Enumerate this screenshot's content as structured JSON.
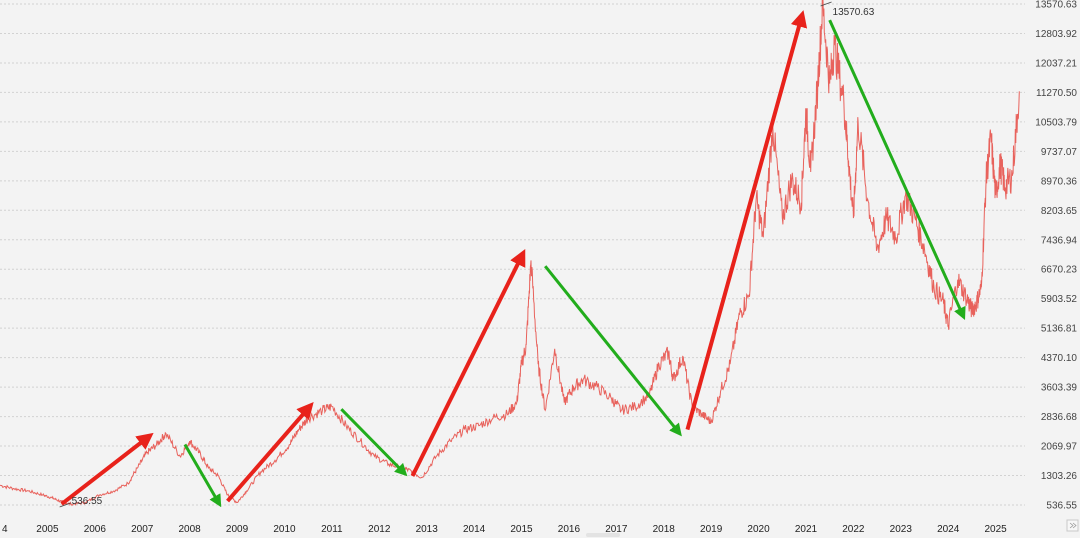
{
  "chart_data": {
    "type": "line",
    "title": "",
    "xlabel": "",
    "ylabel": "",
    "grid": true,
    "y_axis_position": "right",
    "ylim": [
      400,
      13650
    ],
    "xlim": [
      2004.0,
      2025.6
    ],
    "x_ticks": [
      "4",
      "2005",
      "2006",
      "2007",
      "2008",
      "2009",
      "2010",
      "2011",
      "2012",
      "2013",
      "2014",
      "2015",
      "2016",
      "2017",
      "2018",
      "2019",
      "2020",
      "2021",
      "2022",
      "2023",
      "2024",
      "2025"
    ],
    "y_ticks": [
      "536.55",
      "1303.26",
      "2069.97",
      "2836.68",
      "3603.39",
      "4370.10",
      "5136.81",
      "5903.52",
      "6670.23",
      "7436.94",
      "8203.65",
      "8970.36",
      "9737.07",
      "10503.79",
      "11270.50",
      "12037.21",
      "12803.92",
      "13570.63"
    ],
    "y_tick_values": [
      536.55,
      1303.26,
      2069.97,
      2836.68,
      3603.39,
      4370.1,
      5136.81,
      5903.52,
      6670.23,
      7436.94,
      8203.65,
      8970.36,
      9737.07,
      10503.79,
      11270.5,
      12037.21,
      12803.92,
      13570.63
    ],
    "series": [
      {
        "color": "#e8625c",
        "x": [
          2004.0,
          2004.3,
          2004.6,
          2004.9,
          2005.1,
          2005.3,
          2005.5,
          2005.8,
          2006.1,
          2006.4,
          2006.7,
          2006.9,
          2007.1,
          2007.3,
          2007.5,
          2007.8,
          2008.0,
          2008.2,
          2008.4,
          2008.6,
          2008.8,
          2009.0,
          2009.2,
          2009.5,
          2009.8,
          2010.1,
          2010.3,
          2010.5,
          2010.8,
          2011.0,
          2011.3,
          2011.6,
          2011.9,
          2012.2,
          2012.5,
          2012.7,
          2012.9,
          2013.2,
          2013.5,
          2013.8,
          2014.1,
          2014.4,
          2014.7,
          2014.9,
          2015.0,
          2015.1,
          2015.2,
          2015.35,
          2015.5,
          2015.7,
          2015.9,
          2016.1,
          2016.3,
          2016.6,
          2016.9,
          2017.1,
          2017.4,
          2017.7,
          2017.9,
          2018.1,
          2018.2,
          2018.4,
          2018.6,
          2018.8,
          2019.0,
          2019.2,
          2019.4,
          2019.6,
          2019.8,
          2019.95,
          2020.1,
          2020.3,
          2020.5,
          2020.7,
          2020.9,
          2021.0,
          2021.1,
          2021.25,
          2021.35,
          2021.5,
          2021.6,
          2021.8,
          2021.9,
          2022.0,
          2022.1,
          2022.3,
          2022.5,
          2022.7,
          2022.9,
          2023.1,
          2023.3,
          2023.5,
          2023.7,
          2023.9,
          2024.0,
          2024.2,
          2024.4,
          2024.5,
          2024.6,
          2024.7,
          2024.8,
          2024.9,
          2025.0,
          2025.1,
          2025.2,
          2025.35,
          2025.5
        ],
        "values": [
          1050,
          960,
          900,
          800,
          720,
          620,
          560,
          600,
          800,
          900,
          1100,
          1500,
          1900,
          2100,
          2400,
          1800,
          2200,
          1900,
          1500,
          1300,
          800,
          600,
          900,
          1400,
          1700,
          2100,
          2500,
          2800,
          3000,
          3100,
          2600,
          2200,
          1800,
          1600,
          1500,
          1400,
          1250,
          1800,
          2200,
          2500,
          2600,
          2800,
          2900,
          3200,
          4200,
          4700,
          6900,
          4200,
          3000,
          4600,
          3200,
          3600,
          3800,
          3600,
          3300,
          3000,
          3100,
          3400,
          4200,
          4500,
          3800,
          4400,
          3100,
          2900,
          2700,
          3500,
          4200,
          5500,
          6000,
          8500,
          7500,
          10400,
          8000,
          9000,
          8400,
          10800,
          9200,
          11500,
          13570,
          11500,
          12500,
          11000,
          9500,
          8000,
          10500,
          8500,
          7200,
          8000,
          7500,
          8600,
          8000,
          7200,
          6200,
          5800,
          5200,
          6400,
          5900,
          5600,
          5800,
          6200,
          9000,
          10100,
          8600,
          9400,
          8800,
          9100,
          11300
        ]
      }
    ],
    "trend_arrows": [
      {
        "direction": "up",
        "color": "#e8221b",
        "from": [
          2005.3,
          560
        ],
        "to": [
          2007.1,
          2280
        ]
      },
      {
        "direction": "down",
        "color": "#22ad1c",
        "from": [
          2007.9,
          2110
        ],
        "to": [
          2008.6,
          620
        ]
      },
      {
        "direction": "up",
        "color": "#e8221b",
        "from": [
          2008.8,
          640
        ],
        "to": [
          2010.5,
          3050
        ]
      },
      {
        "direction": "down",
        "color": "#22ad1c",
        "from": [
          2011.2,
          3030
        ],
        "to": [
          2012.5,
          1400
        ]
      },
      {
        "direction": "up",
        "color": "#e8221b",
        "from": [
          2012.7,
          1290
        ],
        "to": [
          2015.0,
          7000
        ]
      },
      {
        "direction": "down",
        "color": "#22ad1c",
        "from": [
          2015.5,
          6750
        ],
        "to": [
          2018.3,
          2450
        ]
      },
      {
        "direction": "up",
        "color": "#e8221b",
        "from": [
          2018.5,
          2500
        ],
        "to": [
          2020.9,
          13200
        ]
      },
      {
        "direction": "down",
        "color": "#22ad1c",
        "from": [
          2021.5,
          13150
        ],
        "to": [
          2024.3,
          5500
        ]
      }
    ],
    "annotations": [
      {
        "label": "536.55",
        "x": 2005.3,
        "y": 536.55
      },
      {
        "label": "13570.63",
        "x": 2021.35,
        "y": 13570.63
      }
    ]
  }
}
